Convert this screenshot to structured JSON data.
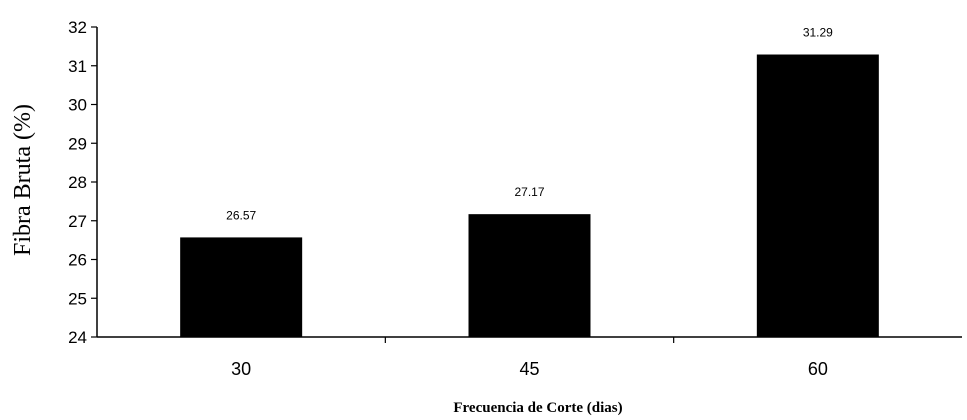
{
  "chart_data": {
    "type": "bar",
    "categories": [
      "30",
      "45",
      "60"
    ],
    "values": [
      26.57,
      27.17,
      31.29
    ],
    "data_labels": [
      "26.57",
      "27.17",
      "31.29"
    ],
    "title": "",
    "xlabel": "Frecuencia de Corte (dias)",
    "ylabel": "Fibra Bruta (%)",
    "ylim": [
      24,
      32
    ],
    "yticks": [
      "24",
      "25",
      "26",
      "27",
      "28",
      "29",
      "30",
      "31",
      "32"
    ],
    "grid": false,
    "legend": "none",
    "colors": {
      "bar": "#000000",
      "axis": "#000000",
      "background": "#ffffff"
    }
  }
}
